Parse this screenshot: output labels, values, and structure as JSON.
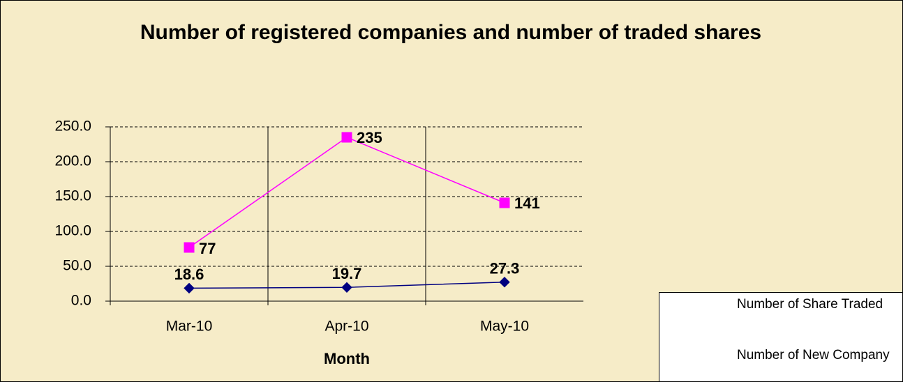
{
  "chart_data": {
    "type": "line",
    "title": "Number of registered companies and number of traded shares",
    "x_label": "Month",
    "categories": [
      "Mar-10",
      "Apr-10",
      "May-10"
    ],
    "series": [
      {
        "name": "Number of Share Traded",
        "color": "#000080",
        "marker": "diamond",
        "values": [
          18.6,
          19.7,
          27.3
        ]
      },
      {
        "name": "Number of New Company",
        "color": "#ff00ff",
        "marker": "square",
        "values": [
          77,
          235,
          141
        ]
      }
    ],
    "ylim": [
      0,
      250
    ],
    "yticks": [
      {
        "value": 0,
        "label": "0.0"
      },
      {
        "value": 50,
        "label": "50.0"
      },
      {
        "value": 100,
        "label": "100.0"
      },
      {
        "value": 150,
        "label": "150.0"
      },
      {
        "value": 200,
        "label": "200.0"
      },
      {
        "value": 250,
        "label": "250.0"
      }
    ],
    "grid": true,
    "legend": "bottom-right"
  }
}
